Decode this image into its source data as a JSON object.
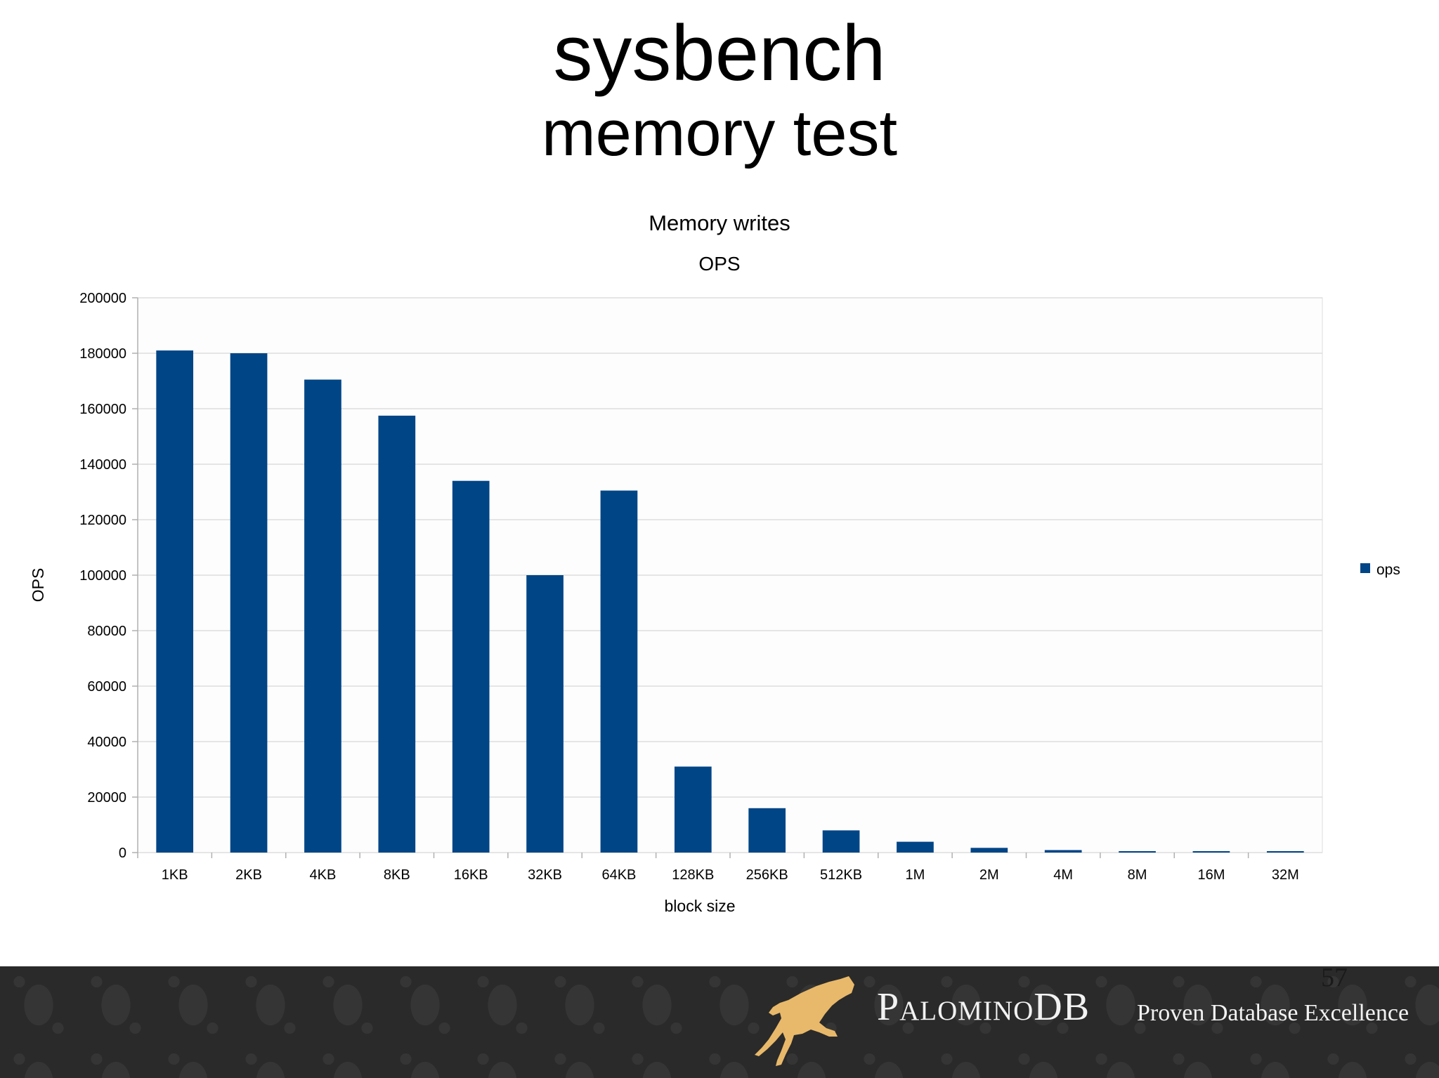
{
  "slide": {
    "title": "sysbench",
    "subtitle": "memory test",
    "page_number": "57"
  },
  "footer": {
    "brand": "PalominoDB",
    "tagline": "Proven Database Excellence",
    "logo_icon": "horse-icon"
  },
  "colors": {
    "bar": "#004586",
    "grid": "#dddddd",
    "footer_bg": "#2b2a2a",
    "logo_gold": "#e8b96a"
  },
  "chart_data": {
    "type": "bar",
    "title": "Memory writes",
    "subtitle": "OPS",
    "xlabel": "block size",
    "ylabel": "OPS",
    "categories": [
      "1KB",
      "2KB",
      "4KB",
      "8KB",
      "16KB",
      "32KB",
      "64KB",
      "128KB",
      "256KB",
      "512KB",
      "1M",
      "2M",
      "4M",
      "8M",
      "16M",
      "32M"
    ],
    "series": [
      {
        "name": "ops",
        "values": [
          181000,
          180000,
          170500,
          157500,
          134000,
          100000,
          130500,
          31000,
          16000,
          8000,
          3900,
          1700,
          900,
          450,
          220,
          110
        ]
      }
    ],
    "ylim": [
      0,
      200000
    ],
    "yticks": [
      0,
      20000,
      40000,
      60000,
      80000,
      100000,
      120000,
      140000,
      160000,
      180000,
      200000
    ],
    "grid": true,
    "legend": "right"
  }
}
